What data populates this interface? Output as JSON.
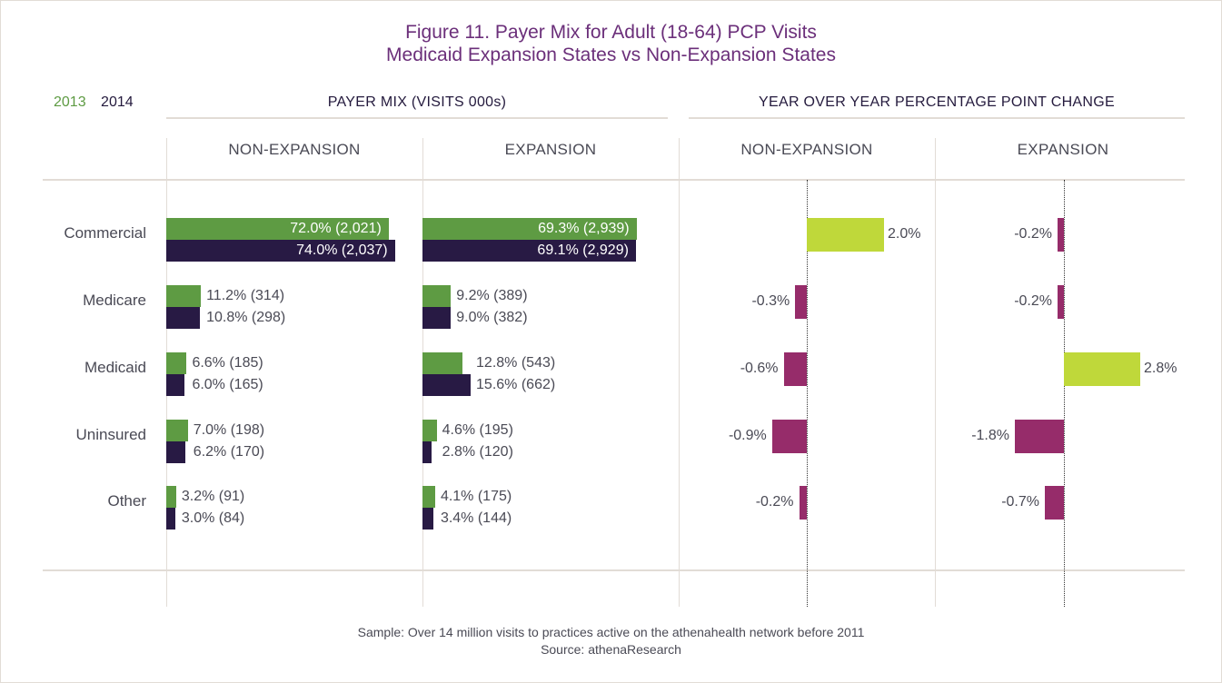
{
  "colors": {
    "title": "#6b2f7a",
    "year_2013": "#5e9b43",
    "year_2014": "#281a44",
    "positive_change": "#bfd83a",
    "negative_change": "#962c6a",
    "gridline": "#e2dcd6"
  },
  "header": {
    "title_line1": "Figure 11. Payer Mix for Adult (18-64) PCP Visits",
    "title_line2": "Medicaid Expansion States vs Non-Expansion States"
  },
  "legend": {
    "y2013": "2013",
    "y2014": "2014"
  },
  "sections": {
    "payer_mix": "PAYER MIX  (VISITS 000s)",
    "yoy": "YEAR OVER YEAR PERCENTAGE POINT CHANGE"
  },
  "columns": {
    "mix_nonexp": "NON-EXPANSION",
    "mix_exp": "EXPANSION",
    "yoy_nonexp": "NON-EXPANSION",
    "yoy_exp": "EXPANSION"
  },
  "footer": {
    "sample": "Sample: Over 14 million visits to practices active on the athenahealth network before 2011",
    "source": "Source: athenaResearch"
  },
  "chart_data": [
    {
      "type": "bar",
      "orientation": "horizontal",
      "title": "PAYER MIX (VISITS 000s) - NON-EXPANSION",
      "categories": [
        "Commercial",
        "Medicare",
        "Medicaid",
        "Uninsured",
        "Other"
      ],
      "series": [
        {
          "name": "2013",
          "values": [
            72.0,
            11.2,
            6.6,
            7.0,
            3.2
          ],
          "visits_000s": [
            2021,
            314,
            185,
            198,
            91
          ],
          "labels": [
            "72.0% (2,021)",
            "11.2% (314)",
            "6.6% (185)",
            "7.0% (198)",
            "3.2% (91)"
          ]
        },
        {
          "name": "2014",
          "values": [
            74.0,
            10.8,
            6.0,
            6.2,
            3.0
          ],
          "visits_000s": [
            2037,
            298,
            165,
            170,
            84
          ],
          "labels": [
            "74.0% (2,037)",
            "10.8% (298)",
            "6.0% (165)",
            "6.2% (170)",
            "3.0% (84)"
          ]
        }
      ],
      "unit": "%"
    },
    {
      "type": "bar",
      "orientation": "horizontal",
      "title": "PAYER MIX (VISITS 000s) - EXPANSION",
      "categories": [
        "Commercial",
        "Medicare",
        "Medicaid",
        "Uninsured",
        "Other"
      ],
      "series": [
        {
          "name": "2013",
          "values": [
            69.3,
            9.2,
            12.8,
            4.6,
            4.1
          ],
          "visits_000s": [
            2939,
            389,
            543,
            195,
            175
          ],
          "labels": [
            "69.3% (2,939)",
            "9.2% (389)",
            "12.8% (543)",
            "4.6% (195)",
            "4.1% (175)"
          ]
        },
        {
          "name": "2014",
          "values": [
            69.1,
            9.0,
            15.6,
            2.8,
            3.4
          ],
          "visits_000s": [
            2929,
            382,
            662,
            120,
            144
          ],
          "labels": [
            "69.1% (2,929)",
            "9.0% (382)",
            "15.6% (662)",
            "2.8% (120)",
            "3.4% (144)"
          ]
        }
      ],
      "unit": "%"
    },
    {
      "type": "bar",
      "orientation": "horizontal",
      "title": "YEAR OVER YEAR PERCENTAGE POINT CHANGE - NON-EXPANSION",
      "categories": [
        "Commercial",
        "Medicare",
        "Medicaid",
        "Uninsured",
        "Other"
      ],
      "values": [
        2.0,
        -0.3,
        -0.6,
        -0.9,
        -0.2
      ],
      "labels": [
        "2.0%",
        "-0.3%",
        "-0.6%",
        "-0.9%",
        "-0.2%"
      ],
      "unit": "percentage points"
    },
    {
      "type": "bar",
      "orientation": "horizontal",
      "title": "YEAR OVER YEAR PERCENTAGE POINT CHANGE - EXPANSION",
      "categories": [
        "Commercial",
        "Medicare",
        "Medicaid",
        "Uninsured",
        "Other"
      ],
      "values": [
        -0.2,
        -0.2,
        2.8,
        -1.8,
        -0.7
      ],
      "labels": [
        "-0.2%",
        "-0.2%",
        "2.8%",
        "-1.8%",
        "-0.7%"
      ],
      "unit": "percentage points"
    }
  ]
}
